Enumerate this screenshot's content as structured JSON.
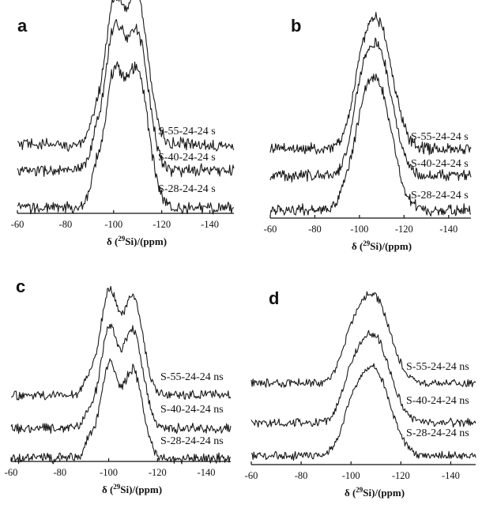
{
  "chart_data": [
    {
      "panel": "a",
      "type": "line",
      "xlabel_prefix": "δ (",
      "xlabel_sup": "29",
      "xlabel_suffix": "Si)/(ppm)",
      "xlim": [
        -60,
        -150
      ],
      "xticks": [
        -60,
        -80,
        -100,
        -120,
        -140
      ],
      "series": [
        {
          "name": "S-55-24-24 s",
          "peaks": [
            {
              "x": -100,
              "h": 1.0,
              "w": 4
            },
            {
              "x": -110,
              "h": 1.05,
              "w": 4.5
            },
            {
              "x": -92,
              "h": 0.12,
              "w": 2
            }
          ]
        },
        {
          "name": "S-40-24-24 s",
          "peaks": [
            {
              "x": -100,
              "h": 1.0,
              "w": 4
            },
            {
              "x": -110,
              "h": 1.0,
              "w": 4.5
            },
            {
              "x": -92,
              "h": 0.15,
              "w": 2
            }
          ]
        },
        {
          "name": "S-28-24-24 s",
          "peaks": [
            {
              "x": -100,
              "h": 0.95,
              "w": 4
            },
            {
              "x": -110,
              "h": 1.0,
              "w": 4.5
            },
            {
              "x": -92,
              "h": 0.18,
              "w": 2
            }
          ]
        }
      ]
    },
    {
      "panel": "b",
      "type": "line",
      "xlabel_prefix": "δ (",
      "xlabel_sup": "29",
      "xlabel_suffix": "Si)/(ppm)",
      "xlim": [
        -60,
        -150
      ],
      "xticks": [
        -60,
        -80,
        -100,
        -120,
        -140
      ],
      "series": [
        {
          "name": "S-55-24-24 s",
          "peaks": [
            {
              "x": -108,
              "h": 1.0,
              "w": 6.5
            },
            {
              "x": -100,
              "h": 0.25,
              "w": 4
            }
          ]
        },
        {
          "name": "S-40-24-24 s",
          "peaks": [
            {
              "x": -108,
              "h": 1.0,
              "w": 6.5
            },
            {
              "x": -100,
              "h": 0.28,
              "w": 4
            }
          ]
        },
        {
          "name": "S-28-24-24 s",
          "peaks": [
            {
              "x": -108,
              "h": 1.0,
              "w": 6.5
            },
            {
              "x": -100,
              "h": 0.3,
              "w": 4
            },
            {
              "x": -93,
              "h": 0.1,
              "w": 2
            }
          ]
        }
      ]
    },
    {
      "panel": "c",
      "type": "line",
      "xlabel_prefix": "δ (",
      "xlabel_sup": "29",
      "xlabel_suffix": "Si)/(ppm)",
      "xlim": [
        -60,
        -150
      ],
      "xticks": [
        -60,
        -80,
        -100,
        -120,
        -140
      ],
      "series": [
        {
          "name": "S-55-24-24 ns",
          "peaks": [
            {
              "x": -100,
              "h": 1.0,
              "w": 3.5
            },
            {
              "x": -110,
              "h": 0.95,
              "w": 4
            },
            {
              "x": -92,
              "h": 0.15,
              "w": 2
            }
          ]
        },
        {
          "name": "S-40-24-24 ns",
          "peaks": [
            {
              "x": -100,
              "h": 0.95,
              "w": 3.5
            },
            {
              "x": -110,
              "h": 0.95,
              "w": 4
            },
            {
              "x": -92,
              "h": 0.15,
              "w": 2
            }
          ]
        },
        {
          "name": "S-28-24-24 ns",
          "peaks": [
            {
              "x": -100,
              "h": 0.9,
              "w": 3.5
            },
            {
              "x": -110,
              "h": 0.85,
              "w": 4
            },
            {
              "x": -92,
              "h": 0.15,
              "w": 2
            }
          ]
        }
      ]
    },
    {
      "panel": "d",
      "type": "line",
      "xlabel_prefix": "δ (",
      "xlabel_sup": "29",
      "xlabel_suffix": "Si)/(ppm)",
      "xlim": [
        -60,
        -150
      ],
      "xticks": [
        -60,
        -80,
        -100,
        -120,
        -140
      ],
      "series": [
        {
          "name": "S-55-24-24 ns",
          "peaks": [
            {
              "x": -109,
              "h": 1.0,
              "w": 6.5
            },
            {
              "x": -100,
              "h": 0.3,
              "w": 4
            }
          ]
        },
        {
          "name": "S-40-24-24 ns",
          "peaks": [
            {
              "x": -109,
              "h": 1.0,
              "w": 6.5
            },
            {
              "x": -100,
              "h": 0.3,
              "w": 4
            }
          ]
        },
        {
          "name": "S-28-24-24 ns",
          "peaks": [
            {
              "x": -109,
              "h": 1.0,
              "w": 6.5
            },
            {
              "x": -100,
              "h": 0.3,
              "w": 4
            }
          ]
        }
      ]
    }
  ]
}
